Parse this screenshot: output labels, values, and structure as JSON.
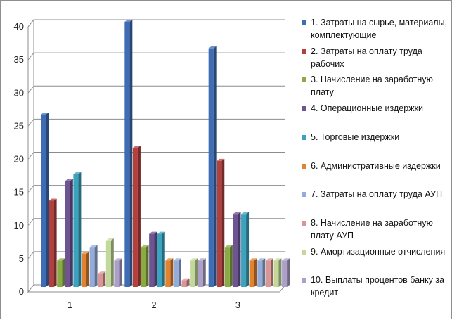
{
  "chart_data": {
    "type": "bar",
    "style": "3d-clustered",
    "title": "",
    "xlabel": "",
    "ylabel": "",
    "ylim": [
      0,
      40
    ],
    "yticks": [
      0,
      5,
      10,
      15,
      20,
      25,
      30,
      35,
      40
    ],
    "grid": true,
    "legend_position": "right",
    "categories": [
      "1",
      "2",
      "3"
    ],
    "series": [
      {
        "name": "1. Затраты на сырье, материалы, комплектующие",
        "color": "#3e6db5",
        "values": [
          26,
          40,
          36
        ]
      },
      {
        "name": "2. Затраты на оплату труда рабочих",
        "color": "#b3403d",
        "values": [
          13,
          21,
          19
        ]
      },
      {
        "name": "3. Начисление на заработную плату",
        "color": "#8aab44",
        "values": [
          4,
          6,
          6
        ]
      },
      {
        "name": "4. Операционные издержки",
        "color": "#6f5493",
        "values": [
          16,
          8,
          11
        ]
      },
      {
        "name": "5. Торговые издержки",
        "color": "#3ca3bf",
        "values": [
          17,
          8,
          11
        ]
      },
      {
        "name": "6. Административные издержки",
        "color": "#e1832f",
        "values": [
          5,
          4,
          4
        ]
      },
      {
        "name": "7. Затраты на оплату труда АУП",
        "color": "#93acd9",
        "values": [
          6,
          4,
          4
        ]
      },
      {
        "name": "8. Начисление на заработную плату АУП",
        "color": "#db9594",
        "values": [
          2,
          1,
          4
        ]
      },
      {
        "name": "9. Амортизационные отчисления",
        "color": "#c3d99b",
        "values": [
          7,
          4,
          4
        ]
      },
      {
        "name": "10. Выплаты процентов банку за кредит",
        "color": "#ada0c8",
        "values": [
          4,
          4,
          4
        ]
      }
    ]
  }
}
